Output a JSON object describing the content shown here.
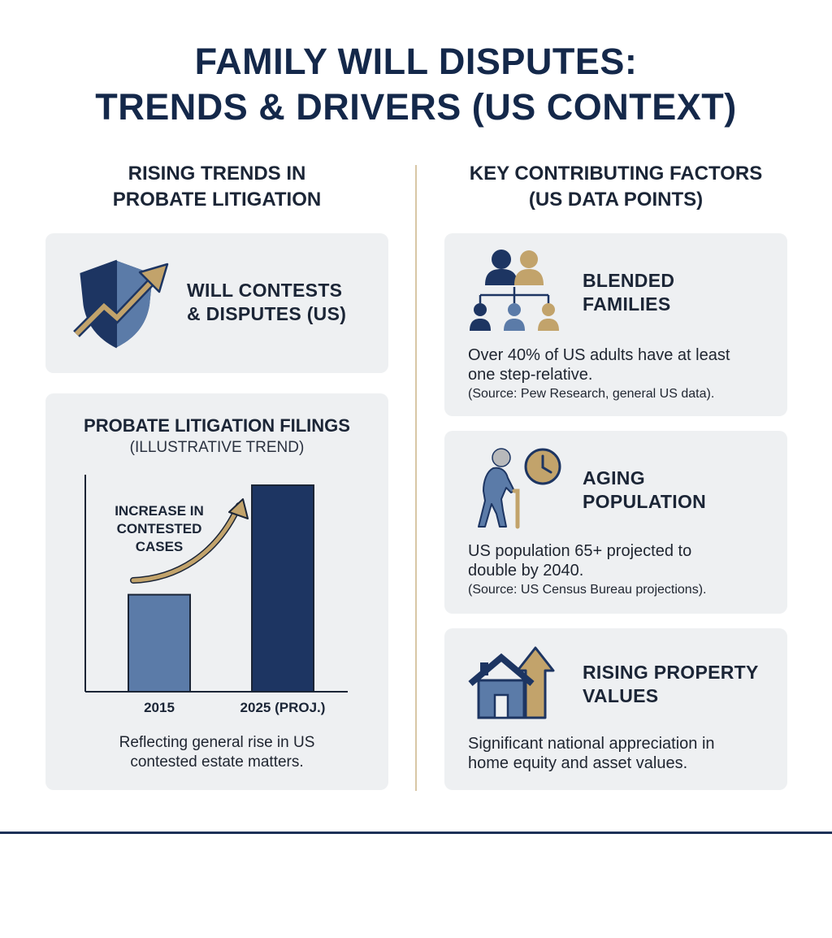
{
  "title": {
    "line1": "FAMILY WILL DISPUTES:",
    "line2": "TRENDS & DRIVERS (US CONTEXT)"
  },
  "left_column": {
    "heading_line1": "RISING TRENDS IN",
    "heading_line2": "PROBATE LITIGATION",
    "contests_card": {
      "title_line1": "WILL CONTESTS",
      "title_line2": "& DISPUTES (US)",
      "icon": "shield-rising-arrow-icon"
    },
    "chart_card": {
      "title": "PROBATE LITIGATION FILINGS",
      "subtitle": "(ILLUSTRATIVE TREND)",
      "annotation_lines": [
        "INCREASE IN",
        "CONTESTED",
        "CASES"
      ],
      "caption_line1": "Reflecting general rise in US",
      "caption_line2": "contested estate matters."
    }
  },
  "right_column": {
    "heading_line1": "KEY CONTRIBUTING FACTORS",
    "heading_line2": "(US DATA POINTS)",
    "factors": [
      {
        "icon": "family-tree-icon",
        "title_line1": "BLENDED",
        "title_line2": "FAMILIES",
        "body_line1": "Over 40% of US adults have at least",
        "body_line2": "one step-relative.",
        "source": "(Source: Pew Research, general US data)."
      },
      {
        "icon": "elderly-person-clock-icon",
        "title_line1": "AGING",
        "title_line2": "POPULATION",
        "body_line1": "US population 65+ projected to",
        "body_line2": "double by 2040.",
        "source": "(Source: US Census Bureau projections)."
      },
      {
        "icon": "house-rising-arrow-icon",
        "title_line1": "RISING PROPERTY",
        "title_line2": "VALUES",
        "body_line1": "Significant national appreciation in",
        "body_line2": "home equity and asset values.",
        "source": ""
      }
    ]
  },
  "colors": {
    "navy": "#1d3562",
    "steel_blue": "#5b7ba8",
    "gold": "#c2a36b",
    "card_bg": "#eef0f2"
  },
  "chart_data": {
    "type": "bar",
    "title": "PROBATE LITIGATION FILINGS",
    "subtitle": "(ILLUSTRATIVE TREND)",
    "categories": [
      "2015",
      "2025 (PROJ.)"
    ],
    "values": [
      47,
      100
    ],
    "ylim": [
      0,
      100
    ],
    "xlabel": "",
    "ylabel": "",
    "grid": false,
    "annotation": "INCREASE IN CONTESTED CASES",
    "bar_colors": [
      "#5b7ba8",
      "#1d3562"
    ]
  }
}
